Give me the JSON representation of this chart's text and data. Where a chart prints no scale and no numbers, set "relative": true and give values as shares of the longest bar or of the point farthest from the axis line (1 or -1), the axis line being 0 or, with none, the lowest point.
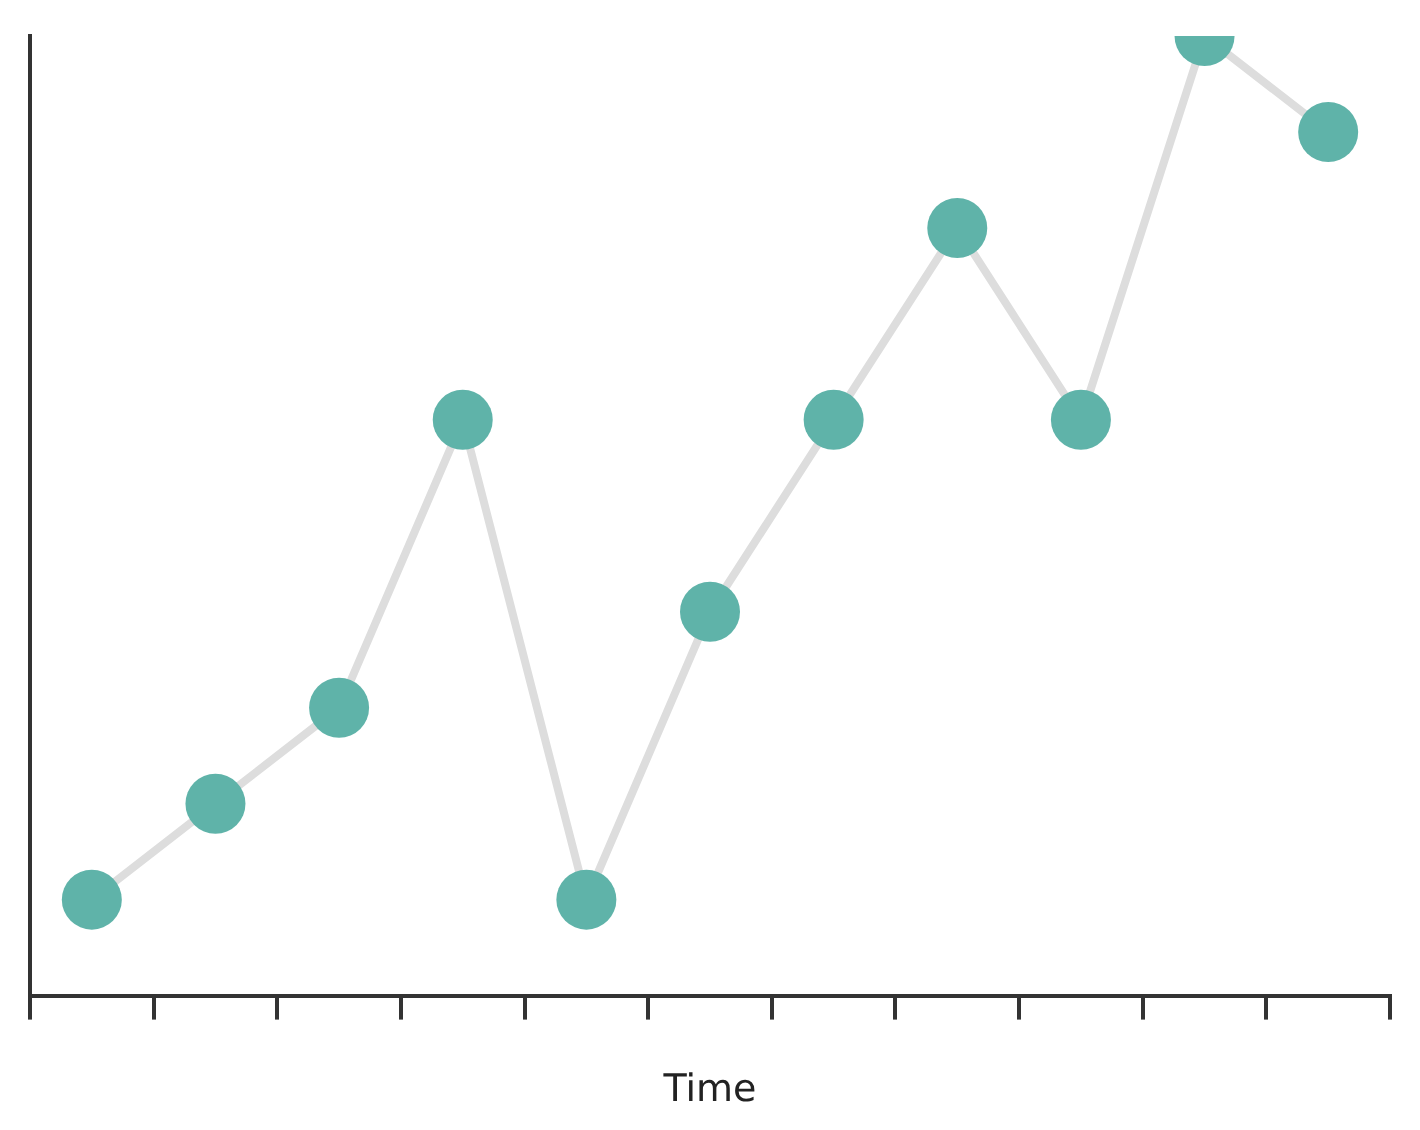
{
  "chart_data": {
    "type": "line",
    "xlabel": "Time",
    "relative": true,
    "categories": [
      null,
      null,
      null,
      null,
      null,
      null,
      null,
      null,
      null,
      null,
      null
    ],
    "series": [
      {
        "color": "#dddddd",
        "values": [
          0.1,
          0.2,
          0.3,
          0.6,
          0.1,
          0.4,
          0.6,
          0.8,
          0.6,
          1.0,
          0.9
        ]
      }
    ],
    "marker": "circle",
    "legend": false,
    "grid": false
  }
}
